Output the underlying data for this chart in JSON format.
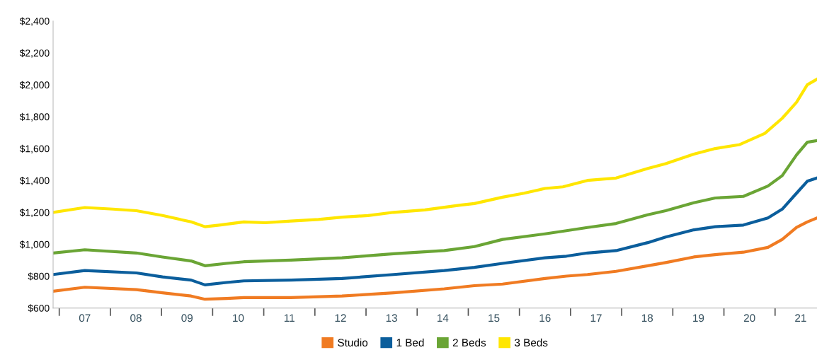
{
  "chart_data": {
    "type": "line",
    "x": [
      6.38,
      7.0,
      8.01,
      8.52,
      9.08,
      9.35,
      9.77,
      10.11,
      11.03,
      12.03,
      13.04,
      14.03,
      14.62,
      15.17,
      16.0,
      16.42,
      16.83,
      17.39,
      18.01,
      18.36,
      18.91,
      19.33,
      19.88,
      20.36,
      20.64,
      20.92,
      21.13,
      21.32
    ],
    "series": [
      {
        "name": "Studio",
        "color": "#f07b22",
        "values": [
          705,
          730,
          715,
          695,
          675,
          655,
          660,
          665,
          665,
          675,
          695,
          720,
          740,
          750,
          785,
          800,
          810,
          830,
          865,
          885,
          920,
          935,
          950,
          980,
          1030,
          1105,
          1140,
          1165
        ]
      },
      {
        "name": "1 Bed",
        "color": "#0b5e9c",
        "values": [
          810,
          835,
          820,
          795,
          775,
          745,
          760,
          770,
          775,
          785,
          810,
          835,
          855,
          880,
          915,
          925,
          945,
          960,
          1010,
          1045,
          1090,
          1110,
          1120,
          1165,
          1220,
          1320,
          1395,
          1415
        ]
      },
      {
        "name": "2 Beds",
        "color": "#6aa535",
        "values": [
          945,
          965,
          945,
          920,
          895,
          865,
          880,
          890,
          900,
          915,
          940,
          960,
          985,
          1030,
          1065,
          1085,
          1105,
          1130,
          1185,
          1210,
          1260,
          1290,
          1300,
          1365,
          1430,
          1560,
          1640,
          1650
        ]
      },
      {
        "name": "3 Beds",
        "color": "#ffe600",
        "x": [
          6.38,
          7.0,
          7.55,
          8.01,
          8.52,
          9.08,
          9.35,
          9.63,
          10.11,
          10.53,
          11.03,
          11.57,
          12.03,
          12.54,
          13.04,
          13.65,
          14.34,
          14.62,
          15.17,
          15.59,
          16.0,
          16.35,
          16.83,
          17.39,
          18.01,
          18.36,
          18.91,
          19.33,
          19.81,
          20.3,
          20.64,
          20.92,
          21.13,
          21.32
        ],
        "values": [
          1200,
          1230,
          1220,
          1210,
          1180,
          1140,
          1110,
          1120,
          1140,
          1135,
          1145,
          1155,
          1170,
          1180,
          1200,
          1215,
          1245,
          1255,
          1295,
          1320,
          1350,
          1360,
          1400,
          1415,
          1475,
          1505,
          1565,
          1600,
          1625,
          1695,
          1790,
          1890,
          2000,
          2035
        ]
      }
    ],
    "xlim": [
      6.38,
      21.32
    ],
    "ylim": [
      600,
      2400
    ],
    "xticks": [
      {
        "value": 7,
        "label": "07"
      },
      {
        "value": 8,
        "label": "08"
      },
      {
        "value": 9,
        "label": "09"
      },
      10,
      11,
      12,
      13,
      14,
      15,
      16,
      17,
      18,
      19,
      20,
      21,
      {
        "value": 6.5,
        "label": null
      },
      {
        "value": 7.5,
        "label": null
      },
      {
        "value": 8.5,
        "label": null
      },
      {
        "value": 9.5,
        "label": null
      },
      {
        "value": 10.5,
        "label": null
      },
      {
        "value": 11.5,
        "label": null
      },
      {
        "value": 12.5,
        "label": null
      },
      {
        "value": 13.5,
        "label": null
      },
      {
        "value": 14.5,
        "label": null
      },
      {
        "value": 15.5,
        "label": null
      },
      {
        "value": 16.5,
        "label": null
      },
      {
        "value": 17.5,
        "label": null
      },
      {
        "value": 18.5,
        "label": null
      },
      {
        "value": 19.5,
        "label": null
      },
      {
        "value": 20.5,
        "label": null
      }
    ],
    "yticks": [
      {
        "value": 600,
        "label": "$600"
      },
      {
        "value": 800,
        "label": "$800"
      },
      {
        "value": 1000,
        "label": "$1,000"
      },
      {
        "value": 1200,
        "label": "$1,200"
      },
      {
        "value": 1400,
        "label": "$1,400"
      },
      {
        "value": 1600,
        "label": "$1,600"
      },
      {
        "value": 1800,
        "label": "$1,800"
      },
      {
        "value": 2000,
        "label": "$2,000"
      },
      {
        "value": 2200,
        "label": "$2,200"
      },
      {
        "value": 2400,
        "label": "$2,400"
      }
    ],
    "legend": "bottom",
    "grid": false,
    "line_style": "solid",
    "marker": "none"
  }
}
